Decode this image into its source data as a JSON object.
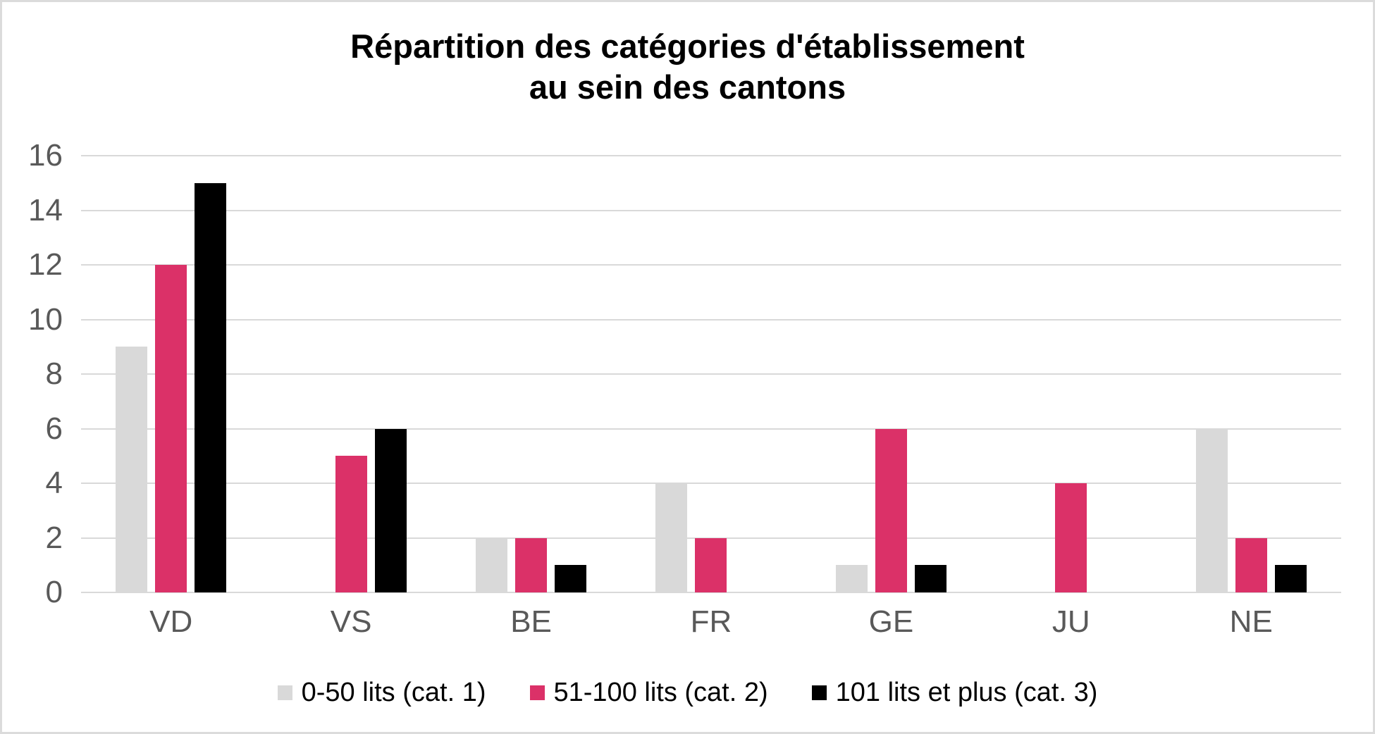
{
  "chart_data": {
    "type": "bar",
    "title": "Répartition des catégories d'établissement au sein des cantons",
    "title_lines": [
      "Répartition des catégories d'établissement",
      "au sein des cantons"
    ],
    "categories": [
      "VD",
      "VS",
      "BE",
      "FR",
      "GE",
      "JU",
      "NE"
    ],
    "series": [
      {
        "name": "0-50 lits (cat. 1)",
        "color": "#D9D9D9",
        "values": [
          9,
          0,
          2,
          4,
          1,
          0,
          6
        ]
      },
      {
        "name": "51-100 lits (cat. 2)",
        "color": "#DB3168",
        "values": [
          12,
          5,
          2,
          2,
          6,
          4,
          2
        ]
      },
      {
        "name": "101 lits et plus (cat. 3)",
        "color": "#000000",
        "values": [
          15,
          6,
          1,
          0,
          1,
          0,
          1
        ]
      }
    ],
    "ylim": [
      0,
      16
    ],
    "yticks": [
      0,
      2,
      4,
      6,
      8,
      10,
      12,
      14,
      16
    ],
    "grid": "horizontal",
    "legend_position": "bottom",
    "colors": {
      "axis_label": "#595959",
      "gridline": "#D9D9D9",
      "title": "#000000",
      "border": "#DBDBDB"
    }
  }
}
